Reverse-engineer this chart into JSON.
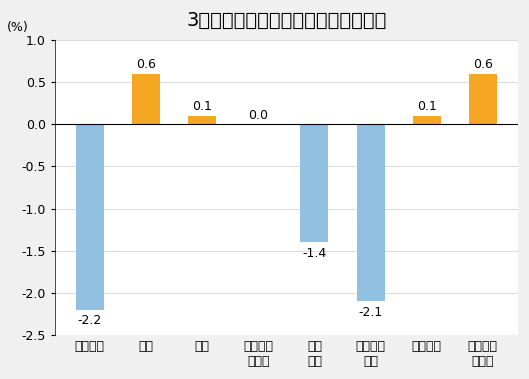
{
  "title": "3月份居民消费价格分类别环比涨跌幅",
  "ylabel": "(%)",
  "categories": [
    "食品烟酒",
    "衣着",
    "居住",
    "生活用品\n及服务",
    "交通\n通信",
    "教育文化\n娱乐",
    "医疗保健",
    "其他用品\n及服务"
  ],
  "values": [
    -2.2,
    0.6,
    0.1,
    0.0,
    -1.4,
    -2.1,
    0.1,
    0.6
  ],
  "bar_colors": [
    "#92C0E0",
    "#F5A623",
    "#F5A623",
    "#F5A623",
    "#92C0E0",
    "#92C0E0",
    "#F5A623",
    "#F5A623"
  ],
  "ylim": [
    -2.5,
    1.0
  ],
  "yticks": [
    -2.5,
    -2.0,
    -1.5,
    -1.0,
    -0.5,
    0.0,
    0.5,
    1.0
  ],
  "background_color": "#f0f0f0",
  "plot_bg_color": "#ffffff",
  "title_fontsize": 14,
  "label_fontsize": 9,
  "tick_fontsize": 9,
  "value_fontsize": 9
}
